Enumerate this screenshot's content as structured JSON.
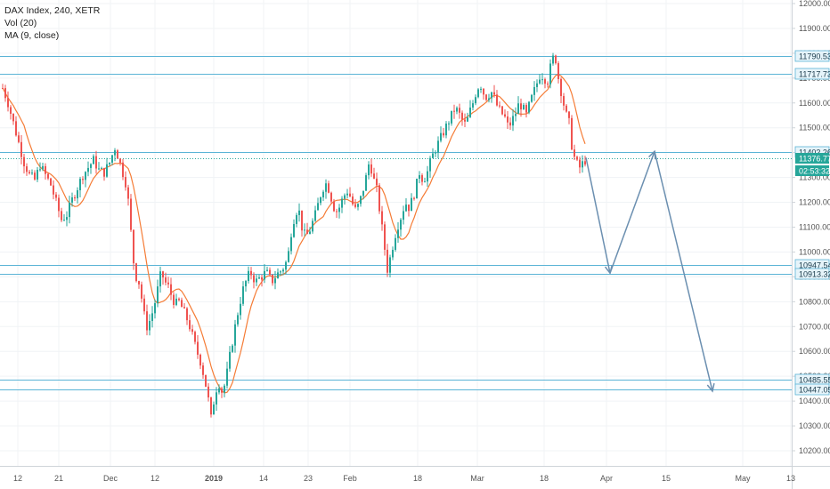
{
  "legend": {
    "symbol_line": "DAX Index, 240, XETR",
    "vol_line": "Vol (20)",
    "ma_line": "MA (9, close)"
  },
  "colors": {
    "up_candle": "#26a69a",
    "down_candle": "#ef5350",
    "ma_line": "#f57c36",
    "level_line": "#5bb4d6",
    "projection_arrow": "#6b8fb0",
    "current_price_badge": "#26a69a",
    "level_badge_bg": "#e6f4fa",
    "axis_text": "#555555"
  },
  "chart_data": {
    "type": "candlestick",
    "symbol": "DAX Index",
    "interval": "240",
    "exchange": "XETR",
    "ylim": [
      10150,
      12020
    ],
    "y_ticks": [
      10200,
      10300,
      10400,
      10500,
      10600,
      10700,
      10800,
      10900,
      11000,
      11100,
      11200,
      11300,
      11400,
      11500,
      11600,
      11700,
      11800,
      11900,
      12000
    ],
    "y_tick_labels": [
      "10200.00",
      "10300.00",
      "10400.00",
      "10500.00",
      "10600.00",
      "10700.00",
      "10800.00",
      "10900.00",
      "11000.00",
      "11100.00",
      "11200.00",
      "11300.00",
      "11400.00",
      "11500.00",
      "11600.00",
      "11700.00",
      "11800.00",
      "11900.00",
      "12000.00"
    ],
    "x_tick_labels": [
      "12",
      "21",
      "Dec",
      "12",
      "2019",
      "14",
      "23",
      "Feb",
      "18",
      "Mar",
      "18",
      "Apr",
      "15",
      "May",
      "13"
    ],
    "x_tick_bold": [
      false,
      false,
      false,
      false,
      true,
      false,
      false,
      false,
      false,
      false,
      false,
      false,
      false,
      false,
      false
    ],
    "horizontal_levels": [
      11790.53,
      11717.73,
      11402.26,
      10947.54,
      10913.32,
      10485.55,
      10447.05
    ],
    "horizontal_level_labels": [
      "11790.53",
      "11717.73",
      "11402.26",
      "10947.54",
      "10913.32",
      "10485.55",
      "10447.05"
    ],
    "current_price": 11376.77,
    "current_price_label": "11376.77",
    "countdown_label": "02:53:32",
    "price_path": [
      {
        "t": 0,
        "p": 11660
      },
      {
        "t": 6,
        "p": 11600
      },
      {
        "t": 12,
        "p": 11520
      },
      {
        "t": 18,
        "p": 11440
      },
      {
        "t": 24,
        "p": 11360
      },
      {
        "t": 30,
        "p": 11310
      },
      {
        "t": 36,
        "p": 11290
      },
      {
        "t": 42,
        "p": 11350
      },
      {
        "t": 48,
        "p": 11310
      },
      {
        "t": 54,
        "p": 11270
      },
      {
        "t": 60,
        "p": 11200
      },
      {
        "t": 66,
        "p": 11130
      },
      {
        "t": 72,
        "p": 11150
      },
      {
        "t": 78,
        "p": 11210
      },
      {
        "t": 84,
        "p": 11260
      },
      {
        "t": 90,
        "p": 11310
      },
      {
        "t": 96,
        "p": 11340
      },
      {
        "t": 102,
        "p": 11370
      },
      {
        "t": 108,
        "p": 11330
      },
      {
        "t": 114,
        "p": 11320
      },
      {
        "t": 120,
        "p": 11360
      },
      {
        "t": 126,
        "p": 11420
      },
      {
        "t": 130,
        "p": 11380
      },
      {
        "t": 134,
        "p": 11330
      },
      {
        "t": 138,
        "p": 11280
      },
      {
        "t": 142,
        "p": 11180
      },
      {
        "t": 146,
        "p": 10980
      },
      {
        "t": 150,
        "p": 10900
      },
      {
        "t": 154,
        "p": 10870
      },
      {
        "t": 158,
        "p": 10760
      },
      {
        "t": 162,
        "p": 10700
      },
      {
        "t": 166,
        "p": 10730
      },
      {
        "t": 170,
        "p": 10780
      },
      {
        "t": 174,
        "p": 10850
      },
      {
        "t": 178,
        "p": 10920
      },
      {
        "t": 182,
        "p": 10880
      },
      {
        "t": 186,
        "p": 10860
      },
      {
        "t": 190,
        "p": 10820
      },
      {
        "t": 194,
        "p": 10790
      },
      {
        "t": 198,
        "p": 10800
      },
      {
        "t": 202,
        "p": 10770
      },
      {
        "t": 206,
        "p": 10740
      },
      {
        "t": 210,
        "p": 10700
      },
      {
        "t": 214,
        "p": 10650
      },
      {
        "t": 218,
        "p": 10600
      },
      {
        "t": 222,
        "p": 10560
      },
      {
        "t": 226,
        "p": 10500
      },
      {
        "t": 230,
        "p": 10430
      },
      {
        "t": 234,
        "p": 10330
      },
      {
        "t": 238,
        "p": 10420
      },
      {
        "t": 242,
        "p": 10480
      },
      {
        "t": 246,
        "p": 10440
      },
      {
        "t": 250,
        "p": 10470
      },
      {
        "t": 254,
        "p": 10560
      },
      {
        "t": 258,
        "p": 10640
      },
      {
        "t": 262,
        "p": 10720
      },
      {
        "t": 266,
        "p": 10790
      },
      {
        "t": 270,
        "p": 10850
      },
      {
        "t": 274,
        "p": 10890
      },
      {
        "t": 278,
        "p": 10920
      },
      {
        "t": 284,
        "p": 10880
      },
      {
        "t": 290,
        "p": 10900
      },
      {
        "t": 296,
        "p": 10920
      },
      {
        "t": 302,
        "p": 10880
      },
      {
        "t": 308,
        "p": 10910
      },
      {
        "t": 314,
        "p": 10930
      },
      {
        "t": 320,
        "p": 10970
      },
      {
        "t": 324,
        "p": 11080
      },
      {
        "t": 328,
        "p": 11150
      },
      {
        "t": 332,
        "p": 11180
      },
      {
        "t": 336,
        "p": 11100
      },
      {
        "t": 340,
        "p": 11060
      },
      {
        "t": 344,
        "p": 11080
      },
      {
        "t": 348,
        "p": 11120
      },
      {
        "t": 352,
        "p": 11160
      },
      {
        "t": 356,
        "p": 11220
      },
      {
        "t": 360,
        "p": 11260
      },
      {
        "t": 364,
        "p": 11280
      },
      {
        "t": 368,
        "p": 11230
      },
      {
        "t": 372,
        "p": 11180
      },
      {
        "t": 376,
        "p": 11160
      },
      {
        "t": 380,
        "p": 11200
      },
      {
        "t": 384,
        "p": 11230
      },
      {
        "t": 388,
        "p": 11250
      },
      {
        "t": 392,
        "p": 11200
      },
      {
        "t": 396,
        "p": 11170
      },
      {
        "t": 400,
        "p": 11190
      },
      {
        "t": 404,
        "p": 11240
      },
      {
        "t": 408,
        "p": 11300
      },
      {
        "t": 412,
        "p": 11370
      },
      {
        "t": 416,
        "p": 11300
      },
      {
        "t": 420,
        "p": 11250
      },
      {
        "t": 424,
        "p": 11150
      },
      {
        "t": 428,
        "p": 11040
      },
      {
        "t": 432,
        "p": 10930
      },
      {
        "t": 436,
        "p": 10990
      },
      {
        "t": 440,
        "p": 11060
      },
      {
        "t": 444,
        "p": 11110
      },
      {
        "t": 448,
        "p": 11150
      },
      {
        "t": 452,
        "p": 11200
      },
      {
        "t": 456,
        "p": 11180
      },
      {
        "t": 460,
        "p": 11210
      },
      {
        "t": 464,
        "p": 11260
      },
      {
        "t": 468,
        "p": 11320
      },
      {
        "t": 472,
        "p": 11290
      },
      {
        "t": 476,
        "p": 11310
      },
      {
        "t": 480,
        "p": 11360
      },
      {
        "t": 484,
        "p": 11400
      },
      {
        "t": 488,
        "p": 11430
      },
      {
        "t": 492,
        "p": 11460
      },
      {
        "t": 496,
        "p": 11490
      },
      {
        "t": 500,
        "p": 11520
      },
      {
        "t": 504,
        "p": 11550
      },
      {
        "t": 508,
        "p": 11580
      },
      {
        "t": 512,
        "p": 11560
      },
      {
        "t": 516,
        "p": 11530
      },
      {
        "t": 520,
        "p": 11510
      },
      {
        "t": 524,
        "p": 11560
      },
      {
        "t": 528,
        "p": 11600
      },
      {
        "t": 532,
        "p": 11650
      },
      {
        "t": 536,
        "p": 11680
      },
      {
        "t": 540,
        "p": 11640
      },
      {
        "t": 544,
        "p": 11620
      },
      {
        "t": 548,
        "p": 11650
      },
      {
        "t": 552,
        "p": 11620
      },
      {
        "t": 556,
        "p": 11580
      },
      {
        "t": 560,
        "p": 11560
      },
      {
        "t": 564,
        "p": 11540
      },
      {
        "t": 568,
        "p": 11500
      },
      {
        "t": 572,
        "p": 11530
      },
      {
        "t": 576,
        "p": 11560
      },
      {
        "t": 580,
        "p": 11600
      },
      {
        "t": 584,
        "p": 11580
      },
      {
        "t": 588,
        "p": 11550
      },
      {
        "t": 592,
        "p": 11600
      },
      {
        "t": 596,
        "p": 11640
      },
      {
        "t": 600,
        "p": 11680
      },
      {
        "t": 604,
        "p": 11720
      },
      {
        "t": 608,
        "p": 11700
      },
      {
        "t": 612,
        "p": 11690
      },
      {
        "t": 616,
        "p": 11760
      },
      {
        "t": 620,
        "p": 11800
      },
      {
        "t": 624,
        "p": 11700
      },
      {
        "t": 628,
        "p": 11630
      },
      {
        "t": 632,
        "p": 11560
      },
      {
        "t": 636,
        "p": 11520
      },
      {
        "t": 640,
        "p": 11400
      },
      {
        "t": 644,
        "p": 11360
      },
      {
        "t": 648,
        "p": 11340
      },
      {
        "t": 652,
        "p": 11360
      },
      {
        "t": 656,
        "p": 11376.77
      }
    ],
    "ma_period": 9,
    "projection": [
      {
        "t": 656,
        "p": 11380
      },
      {
        "t": 683,
        "p": 10915
      },
      {
        "t": 733,
        "p": 11405
      },
      {
        "t": 798,
        "p": 10440
      }
    ]
  }
}
